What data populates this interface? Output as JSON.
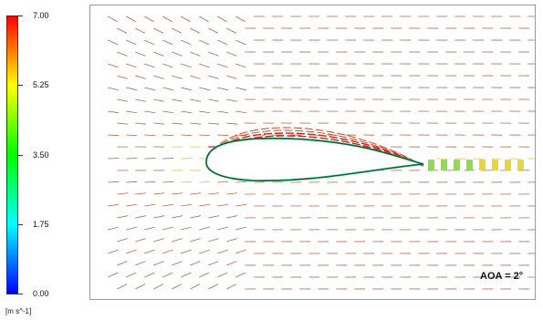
{
  "colorbar": {
    "ticks": [
      "7.00",
      "5.25",
      "3.50",
      "1.75",
      "0.00"
    ],
    "unit": "[m s^-1]",
    "gradient": [
      "#0000ff",
      "#00ffff",
      "#00ff00",
      "#ffff00",
      "#ff0000"
    ]
  },
  "annotation": "AOA = 2°",
  "colors": {
    "slow": "#1b7fd6",
    "mid": "#00c060",
    "medium": "#e0d020",
    "fast": "#d31f1f",
    "airfoil_fill": "#ffffff"
  }
}
